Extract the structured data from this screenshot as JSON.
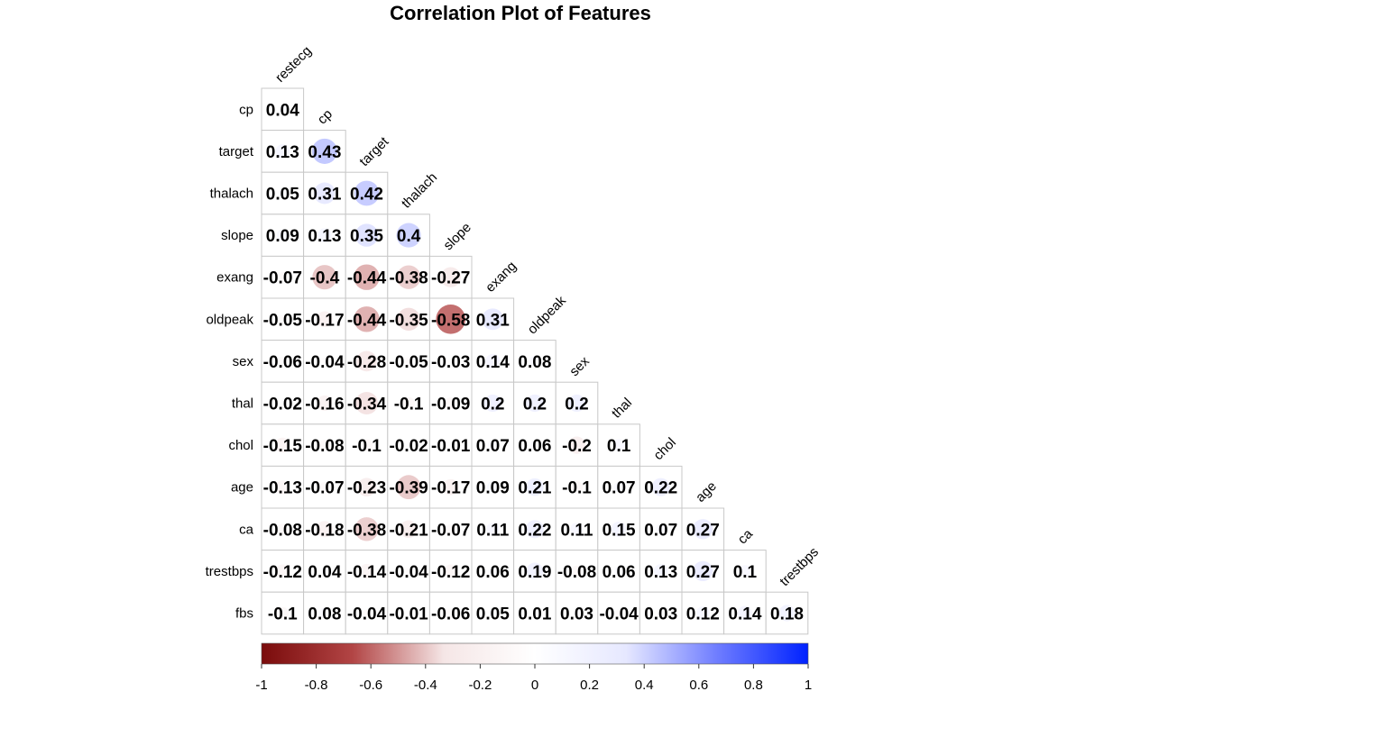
{
  "chart_data": {
    "type": "heatmap",
    "title": "Correlation Plot of Features",
    "variables": [
      "restecg",
      "cp",
      "target",
      "thalach",
      "slope",
      "exang",
      "oldpeak",
      "sex",
      "thal",
      "chol",
      "age",
      "ca",
      "trestbps",
      "fbs"
    ],
    "row_labels": [
      "cp",
      "target",
      "thalach",
      "slope",
      "exang",
      "oldpeak",
      "sex",
      "thal",
      "chol",
      "age",
      "ca",
      "trestbps",
      "fbs"
    ],
    "col_labels": [
      "restecg",
      "cp",
      "target",
      "thalach",
      "slope",
      "exang",
      "oldpeak",
      "sex",
      "thal",
      "chol",
      "age",
      "ca",
      "trestbps"
    ],
    "values": [
      [
        0.04
      ],
      [
        0.13,
        0.43
      ],
      [
        0.05,
        0.31,
        0.42
      ],
      [
        0.09,
        0.13,
        0.35,
        0.4
      ],
      [
        -0.07,
        -0.4,
        -0.44,
        -0.38,
        -0.27
      ],
      [
        -0.05,
        -0.17,
        -0.44,
        -0.35,
        -0.58,
        0.31
      ],
      [
        -0.06,
        -0.04,
        -0.28,
        -0.05,
        -0.03,
        0.14,
        0.08
      ],
      [
        -0.02,
        -0.16,
        -0.34,
        -0.1,
        -0.09,
        0.2,
        0.2,
        0.2
      ],
      [
        -0.15,
        -0.08,
        -0.1,
        -0.02,
        -0.01,
        0.07,
        0.06,
        -0.2,
        0.1
      ],
      [
        -0.13,
        -0.07,
        -0.23,
        -0.39,
        -0.17,
        0.09,
        0.21,
        -0.1,
        0.07,
        0.22
      ],
      [
        -0.08,
        -0.18,
        -0.38,
        -0.21,
        -0.07,
        0.11,
        0.22,
        0.11,
        0.15,
        0.07,
        0.27
      ],
      [
        -0.12,
        0.04,
        -0.14,
        -0.04,
        -0.12,
        0.06,
        0.19,
        -0.08,
        0.06,
        0.13,
        0.27,
        0.1
      ],
      [
        -0.1,
        0.08,
        -0.04,
        -0.01,
        -0.06,
        0.05,
        0.01,
        0.03,
        -0.04,
        0.03,
        0.12,
        0.14,
        0.18
      ]
    ],
    "value_range": [
      -1,
      1
    ],
    "glyph": "circle",
    "layout": "lower-triangle",
    "colorbar": {
      "orientation": "horizontal",
      "ticks": [
        "-1",
        "-0.8",
        "-0.6",
        "-0.4",
        "-0.2",
        "0",
        "0.2",
        "0.4",
        "0.6",
        "0.8",
        "1"
      ],
      "colors": {
        "low": "#67001f",
        "mid": "#ffffff",
        "high": "#053061"
      },
      "palette": [
        "#7a0b0b",
        "#b24545",
        "#f5e6e6",
        "#ffffff",
        "#e6e8ff",
        "#6f7dff",
        "#0022ff"
      ]
    }
  }
}
